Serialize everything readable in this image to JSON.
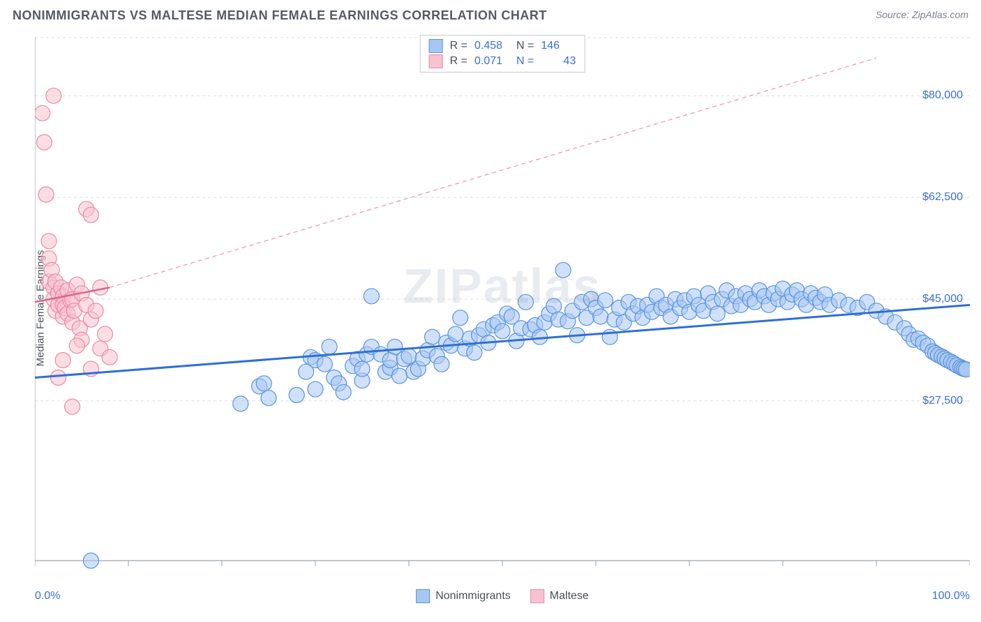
{
  "header": {
    "title": "NONIMMIGRANTS VS MALTESE MEDIAN FEMALE EARNINGS CORRELATION CHART",
    "source_prefix": "Source: ",
    "source": "ZipAtlas.com"
  },
  "watermark": "ZIPatlas",
  "chart": {
    "type": "scatter",
    "ylabel": "Median Female Earnings",
    "xlim": [
      0,
      100
    ],
    "ylim": [
      0,
      90000
    ],
    "xtick_labels": {
      "min": "0.0%",
      "max": "100.0%"
    },
    "ytick_values": [
      27500,
      45000,
      62500,
      80000
    ],
    "ytick_labels": [
      "$27,500",
      "$45,000",
      "$62,500",
      "$80,000"
    ],
    "background_color": "#ffffff",
    "grid_color": "#d7dce2",
    "axis_color": "#9aa3af",
    "tick_label_color": "#3a6fd8",
    "label_color": "#4a4f57",
    "marker_radius": 11,
    "marker_opacity": 0.55,
    "series": [
      {
        "name": "Nonimmigrants",
        "color_fill": "#a7c7f2",
        "color_stroke": "#5a94dd",
        "r_value": "0.458",
        "n_value": "146",
        "trend": {
          "x1": 0,
          "y1": 31500,
          "x2": 100,
          "y2": 44000,
          "color": "#2e6fd6",
          "width": 3,
          "dashed": false
        },
        "points": [
          [
            6,
            0
          ],
          [
            22,
            27000
          ],
          [
            24,
            30000
          ],
          [
            24.5,
            30500
          ],
          [
            25,
            28000
          ],
          [
            28,
            28500
          ],
          [
            29,
            32500
          ],
          [
            29.5,
            35000
          ],
          [
            30,
            29500
          ],
          [
            30,
            34500
          ],
          [
            31,
            33800
          ],
          [
            31.5,
            36800
          ],
          [
            32,
            31500
          ],
          [
            32.5,
            30500
          ],
          [
            33,
            29000
          ],
          [
            34,
            33500
          ],
          [
            34.5,
            34700
          ],
          [
            35,
            31000
          ],
          [
            35,
            33000
          ],
          [
            35.5,
            35500
          ],
          [
            36,
            36800
          ],
          [
            36,
            45500
          ],
          [
            37,
            35500
          ],
          [
            37.5,
            32500
          ],
          [
            38,
            33200
          ],
          [
            38,
            34500
          ],
          [
            38.5,
            36800
          ],
          [
            39,
            31800
          ],
          [
            39.5,
            34700
          ],
          [
            40,
            35200
          ],
          [
            40.5,
            32500
          ],
          [
            41,
            33000
          ],
          [
            41.5,
            34800
          ],
          [
            42,
            36200
          ],
          [
            42.5,
            38500
          ],
          [
            43,
            35200
          ],
          [
            43.5,
            33800
          ],
          [
            44,
            37500
          ],
          [
            44.5,
            37000
          ],
          [
            45,
            39000
          ],
          [
            45.5,
            41800
          ],
          [
            46,
            36500
          ],
          [
            46.5,
            38200
          ],
          [
            47,
            35800
          ],
          [
            47.5,
            38800
          ],
          [
            48,
            39800
          ],
          [
            48.5,
            37500
          ],
          [
            49,
            40500
          ],
          [
            49.5,
            41000
          ],
          [
            50,
            39500
          ],
          [
            50.5,
            42500
          ],
          [
            51,
            42000
          ],
          [
            51.5,
            37800
          ],
          [
            52,
            40000
          ],
          [
            52.5,
            44500
          ],
          [
            53,
            39800
          ],
          [
            53.5,
            40500
          ],
          [
            54,
            38500
          ],
          [
            54.5,
            41000
          ],
          [
            55,
            42500
          ],
          [
            55.5,
            43800
          ],
          [
            56,
            41500
          ],
          [
            56.5,
            50000
          ],
          [
            57,
            41200
          ],
          [
            57.5,
            43000
          ],
          [
            58,
            38800
          ],
          [
            58.5,
            44500
          ],
          [
            59,
            41800
          ],
          [
            59.5,
            45000
          ],
          [
            60,
            43500
          ],
          [
            60.5,
            42000
          ],
          [
            61,
            44800
          ],
          [
            61.5,
            38500
          ],
          [
            62,
            41500
          ],
          [
            62.5,
            43500
          ],
          [
            63,
            41000
          ],
          [
            63.5,
            44500
          ],
          [
            64,
            42500
          ],
          [
            64.5,
            43800
          ],
          [
            65,
            41800
          ],
          [
            65.5,
            44000
          ],
          [
            66,
            42800
          ],
          [
            66.5,
            45500
          ],
          [
            67,
            43500
          ],
          [
            67.5,
            44000
          ],
          [
            68,
            42000
          ],
          [
            68.5,
            45000
          ],
          [
            69,
            43500
          ],
          [
            69.5,
            44800
          ],
          [
            70,
            42800
          ],
          [
            70.5,
            45500
          ],
          [
            71,
            44000
          ],
          [
            71.5,
            43000
          ],
          [
            72,
            46000
          ],
          [
            72.5,
            44500
          ],
          [
            73,
            42500
          ],
          [
            73.5,
            45000
          ],
          [
            74,
            46500
          ],
          [
            74.5,
            43800
          ],
          [
            75,
            45500
          ],
          [
            75.5,
            44000
          ],
          [
            76,
            46000
          ],
          [
            76.5,
            45000
          ],
          [
            77,
            44500
          ],
          [
            77.5,
            46500
          ],
          [
            78,
            45500
          ],
          [
            78.5,
            44000
          ],
          [
            79,
            46000
          ],
          [
            79.5,
            45000
          ],
          [
            80,
            46800
          ],
          [
            80.5,
            44500
          ],
          [
            81,
            45800
          ],
          [
            81.5,
            46500
          ],
          [
            82,
            45000
          ],
          [
            82.5,
            44000
          ],
          [
            83,
            46000
          ],
          [
            83.5,
            45200
          ],
          [
            84,
            44500
          ],
          [
            84.5,
            45800
          ],
          [
            85,
            44000
          ],
          [
            86,
            44800
          ],
          [
            87,
            44000
          ],
          [
            88,
            43500
          ],
          [
            89,
            44500
          ],
          [
            90,
            43000
          ],
          [
            91,
            42000
          ],
          [
            92,
            41000
          ],
          [
            93,
            40000
          ],
          [
            93.5,
            39000
          ],
          [
            94,
            38000
          ],
          [
            94.5,
            38200
          ],
          [
            95,
            37500
          ],
          [
            95.5,
            37000
          ],
          [
            96,
            36000
          ],
          [
            96.3,
            35700
          ],
          [
            96.6,
            35400
          ],
          [
            97,
            35100
          ],
          [
            97.3,
            34800
          ],
          [
            97.6,
            34500
          ],
          [
            98,
            34200
          ],
          [
            98.3,
            33900
          ],
          [
            98.6,
            33600
          ],
          [
            99,
            33300
          ],
          [
            99.2,
            33100
          ],
          [
            99.4,
            33000
          ],
          [
            99.6,
            32900
          ]
        ]
      },
      {
        "name": "Maltese",
        "color_fill": "#f8c3d0",
        "color_stroke": "#e98aa5",
        "r_value": "0.071",
        "n_value": "43",
        "trend_solid": {
          "x1": 0,
          "y1": 44500,
          "x2": 8,
          "y2": 47000,
          "color": "#e26088",
          "width": 2.5
        },
        "trend_dashed": {
          "x1": 8,
          "y1": 47000,
          "x2": 90,
          "y2": 86500,
          "color": "#f2a3bb",
          "width": 1.5
        },
        "points": [
          [
            0.8,
            77000
          ],
          [
            1,
            72000
          ],
          [
            1.2,
            63000
          ],
          [
            1.5,
            55000
          ],
          [
            1.5,
            52000
          ],
          [
            1.5,
            48000
          ],
          [
            1.8,
            50000
          ],
          [
            2,
            45000
          ],
          [
            2,
            47000
          ],
          [
            2.2,
            43000
          ],
          [
            2.2,
            48000
          ],
          [
            2.5,
            46000
          ],
          [
            2.5,
            44000
          ],
          [
            2.8,
            47000
          ],
          [
            3,
            42000
          ],
          [
            3,
            45500
          ],
          [
            3,
            44000
          ],
          [
            3.2,
            43500
          ],
          [
            3.5,
            46500
          ],
          [
            3.5,
            42500
          ],
          [
            3.8,
            44800
          ],
          [
            4,
            41000
          ],
          [
            4,
            45000
          ],
          [
            4.2,
            43000
          ],
          [
            4.5,
            47500
          ],
          [
            4.8,
            40000
          ],
          [
            5,
            46000
          ],
          [
            5,
            38000
          ],
          [
            5.5,
            60500
          ],
          [
            5.5,
            44000
          ],
          [
            6,
            59500
          ],
          [
            6,
            41500
          ],
          [
            6.5,
            43000
          ],
          [
            7,
            36500
          ],
          [
            7,
            47000
          ],
          [
            7.5,
            39000
          ],
          [
            8,
            35000
          ],
          [
            2,
            80000
          ],
          [
            2.5,
            31500
          ],
          [
            3,
            34500
          ],
          [
            4,
            26500
          ],
          [
            4.5,
            37000
          ],
          [
            6,
            33000
          ]
        ]
      }
    ]
  }
}
